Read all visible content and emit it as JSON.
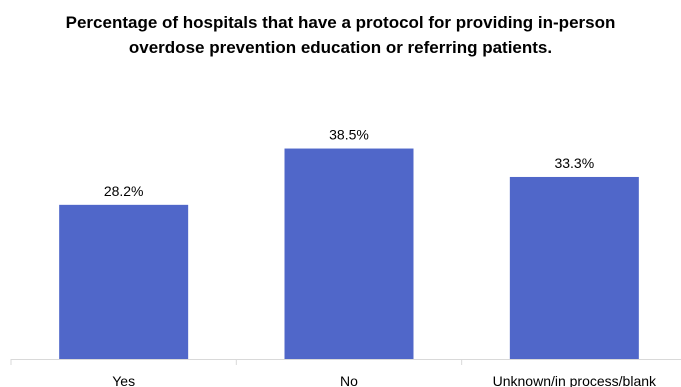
{
  "chart_data": {
    "type": "bar",
    "title_lines": [
      "Percentage of hospitals that have a protocol for providing in-person",
      "overdose prevention education or referring patients."
    ],
    "categories": [
      "Yes",
      "No",
      "Unknown/in process/blank"
    ],
    "values": [
      28.2,
      38.5,
      33.3
    ],
    "value_labels": [
      "28.2%",
      "38.5%",
      "33.3%"
    ],
    "xlabel": "",
    "ylabel": "",
    "ylim": [
      0,
      45
    ],
    "bar_color": "#5067C9",
    "grid": false,
    "legend": "none"
  }
}
